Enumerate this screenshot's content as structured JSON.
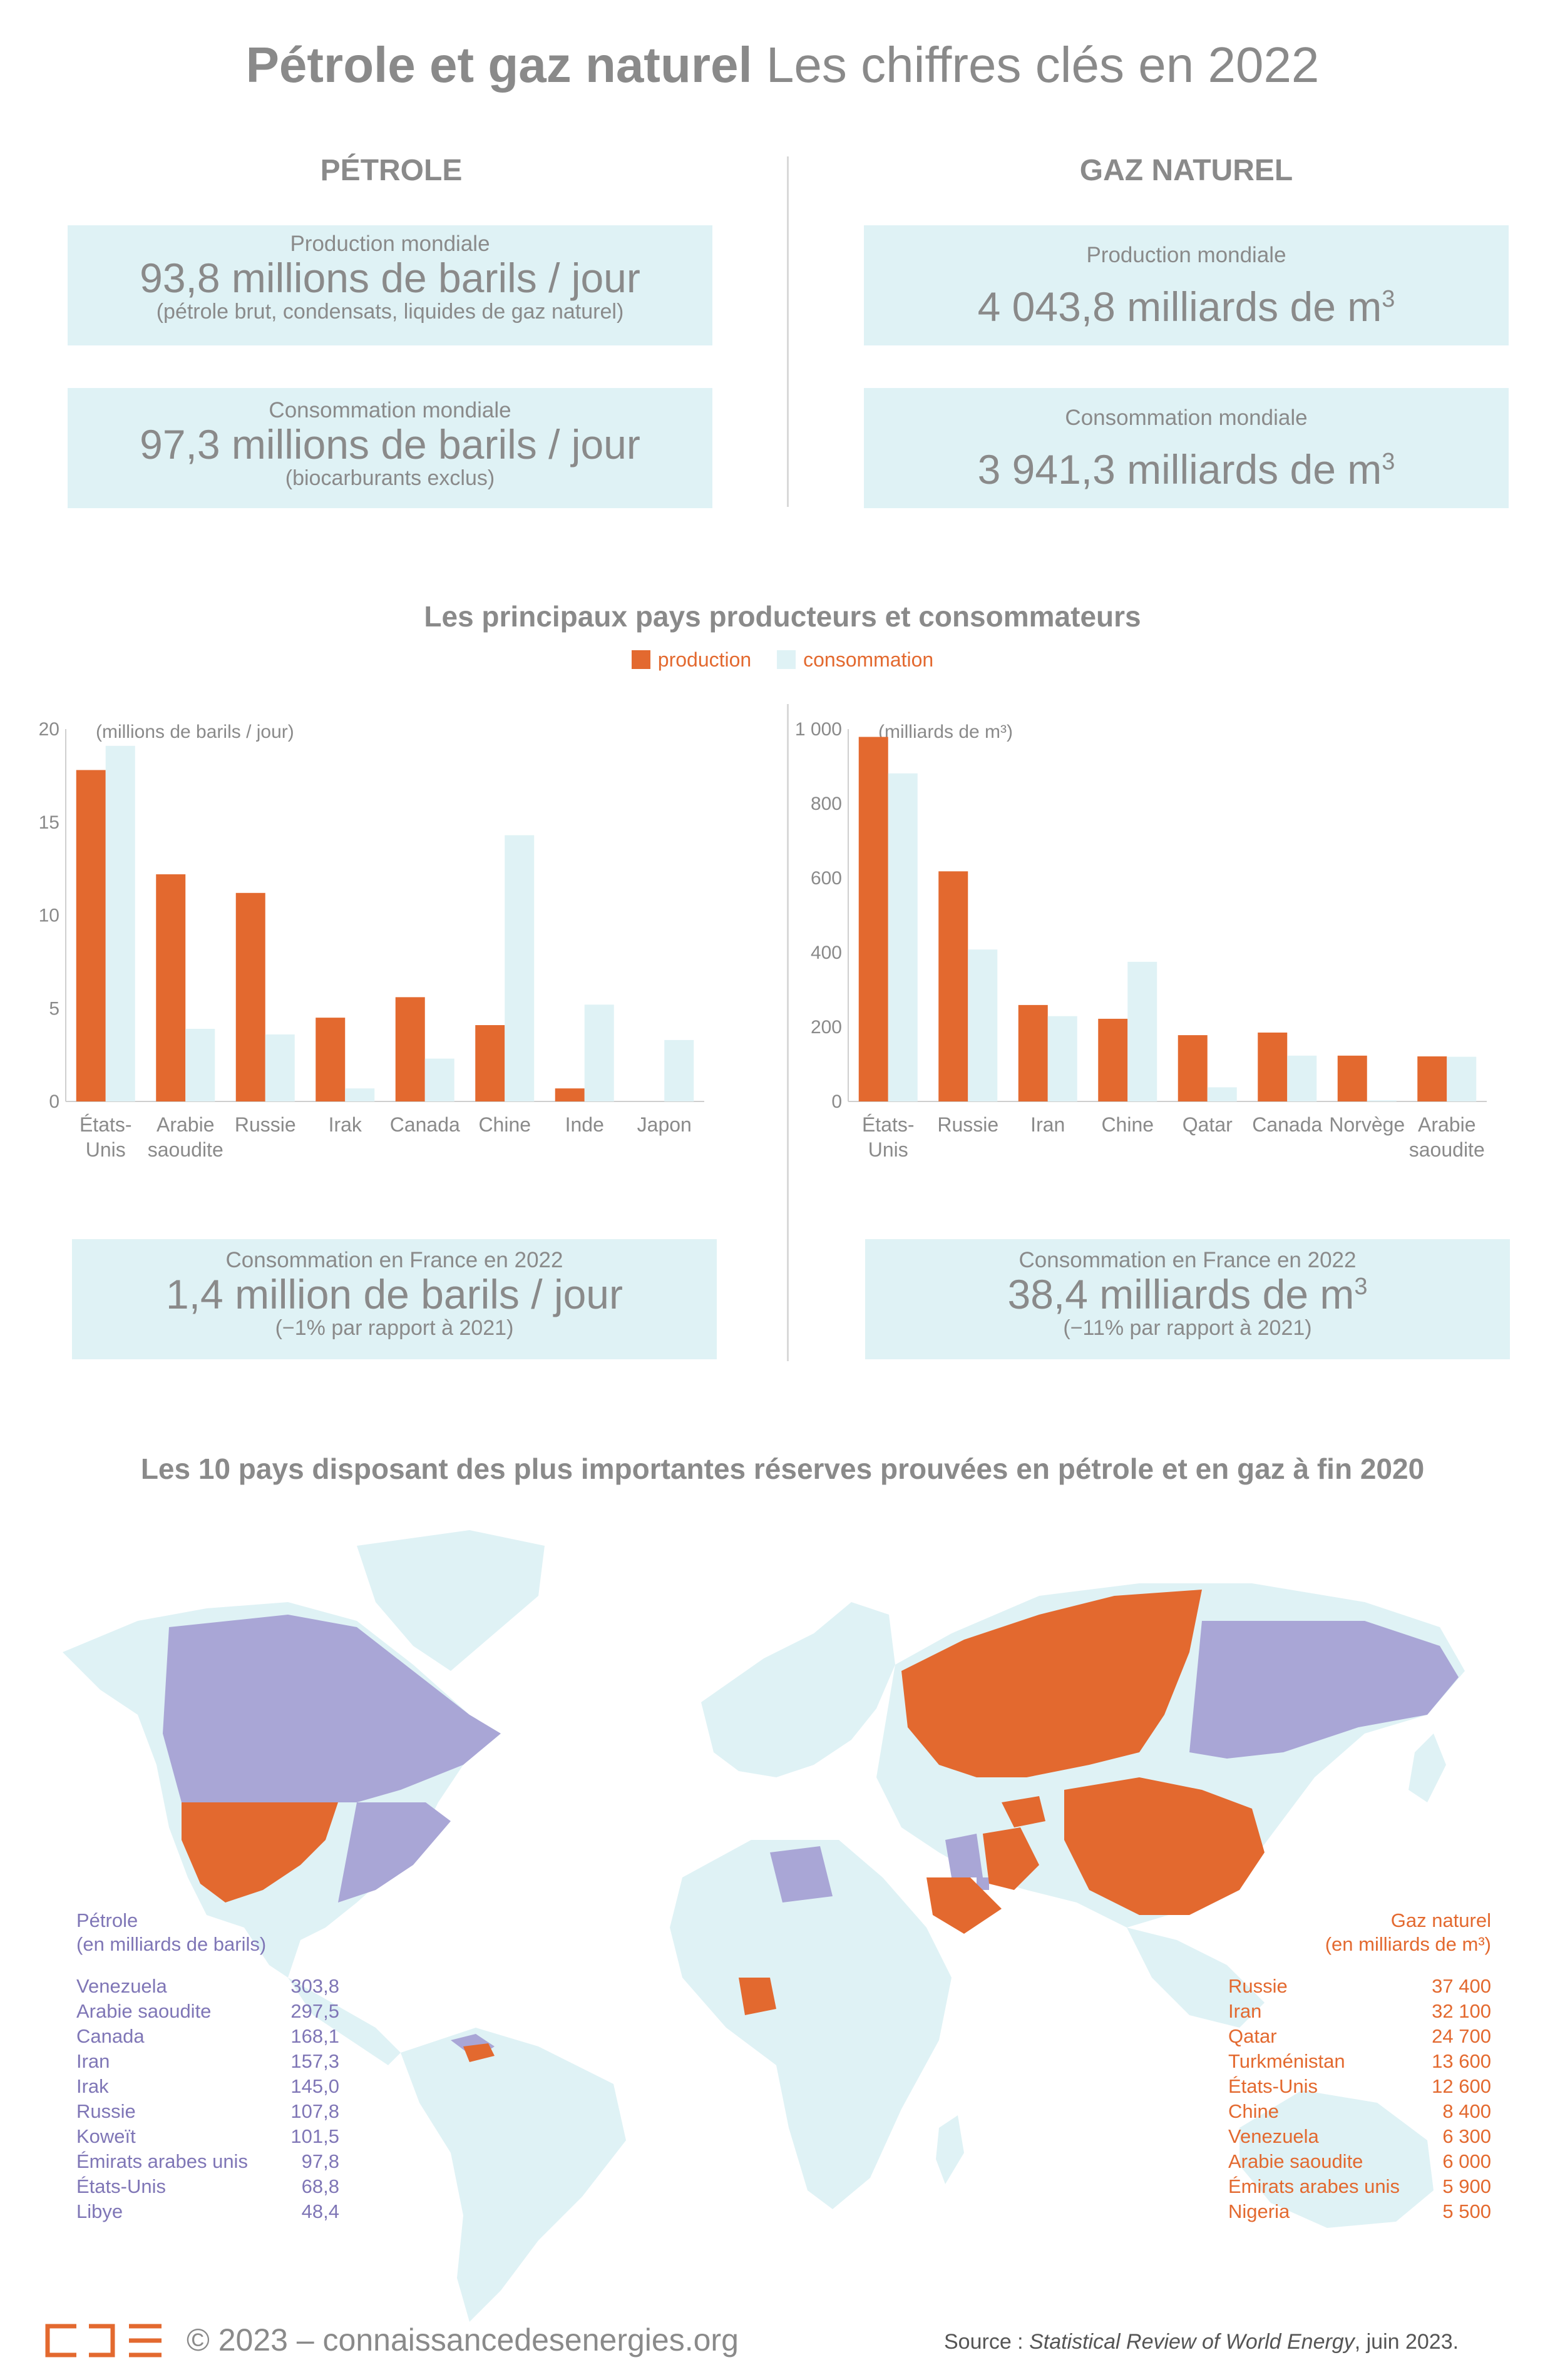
{
  "title": {
    "bold": "Pétrole et gaz naturel",
    "light": "Les chiffres clés en 2022"
  },
  "oil": {
    "heading": "PÉTROLE",
    "production": {
      "label": "Production mondiale",
      "value": "93,8 millions de barils / jour",
      "note": "(pétrole brut, condensats, liquides de gaz naturel)"
    },
    "consumption": {
      "label": "Consommation mondiale",
      "value": "97,3 millions de barils / jour",
      "note": "(biocarburants exclus)"
    },
    "france": {
      "label": "Consommation en France en 2022",
      "value": "1,4 million de barils / jour",
      "note": "(−1% par rapport à 2021)"
    }
  },
  "gas": {
    "heading": "GAZ NATUREL",
    "production": {
      "label": "Production mondiale",
      "value": "4 043,8 milliards de m",
      "sup": "3"
    },
    "consumption": {
      "label": "Consommation mondiale",
      "value": "3 941,3 milliards de m",
      "sup": "3"
    },
    "france": {
      "label": "Consommation en France en 2022",
      "value": "38,4 milliards de m",
      "sup": "3",
      "note": "(−11% par rapport à 2021)"
    }
  },
  "charts_title": "Les principaux pays producteurs et consommateurs",
  "legend": {
    "production": "production",
    "consumption": "consommation"
  },
  "colors": {
    "production": "#e3692f",
    "consumption": "#dff2f5",
    "oil_reserves": "#a9a6d6",
    "gas_reserves": "#e3692f",
    "land": "#dff2f5"
  },
  "chart_data": [
    {
      "type": "bar",
      "unit_label": "(millions de barils / jour)",
      "categories": [
        "États-Unis",
        "Arabie saoudite",
        "Russie",
        "Irak",
        "Canada",
        "Chine",
        "Inde",
        "Japon"
      ],
      "category_lines": [
        [
          "États-",
          "Unis"
        ],
        [
          "Arabie",
          "saoudite"
        ],
        [
          "Russie"
        ],
        [
          "Irak"
        ],
        [
          "Canada"
        ],
        [
          "Chine"
        ],
        [
          "Inde"
        ],
        [
          "Japon"
        ]
      ],
      "series": [
        {
          "name": "production",
          "values": [
            17.8,
            12.2,
            11.2,
            4.5,
            5.6,
            4.1,
            0.7,
            0
          ]
        },
        {
          "name": "consommation",
          "values": [
            19.1,
            3.9,
            3.6,
            0.7,
            2.3,
            14.3,
            5.2,
            3.3
          ]
        }
      ],
      "ylim": [
        0,
        20
      ],
      "yticks": [
        0,
        5,
        10,
        15,
        20
      ],
      "ytick_labels": [
        "0",
        "5",
        "10",
        "15",
        "20"
      ]
    },
    {
      "type": "bar",
      "unit_label": "(milliards de m³)",
      "categories": [
        "États-Unis",
        "Russie",
        "Iran",
        "Chine",
        "Qatar",
        "Canada",
        "Norvège",
        "Arabie saoudite"
      ],
      "category_lines": [
        [
          "États-",
          "Unis"
        ],
        [
          "Russie"
        ],
        [
          "Iran"
        ],
        [
          "Chine"
        ],
        [
          "Qatar"
        ],
        [
          "Canada"
        ],
        [
          "Norvège"
        ],
        [
          "Arabie",
          "saoudite"
        ]
      ],
      "series": [
        {
          "name": "production",
          "values": [
            979,
            618,
            259,
            222,
            178,
            185,
            123,
            121
          ]
        },
        {
          "name": "consommation",
          "values": [
            881,
            408,
            229,
            375,
            38,
            123,
            3,
            120
          ]
        }
      ],
      "ylim": [
        0,
        1000
      ],
      "yticks": [
        0,
        200,
        400,
        600,
        800,
        1000
      ],
      "ytick_labels": [
        "0",
        "200",
        "400",
        "600",
        "800",
        "1 000"
      ]
    }
  ],
  "map_title": "Les 10 pays disposant des plus importantes réserves prouvées en pétrole et en gaz à fin 2020",
  "oil_reserves": {
    "head1": "Pétrole",
    "head2": "(en milliards de barils)",
    "rows": [
      {
        "country": "Venezuela",
        "value": "303,8"
      },
      {
        "country": "Arabie saoudite",
        "value": "297,5"
      },
      {
        "country": "Canada",
        "value": "168,1"
      },
      {
        "country": "Iran",
        "value": "157,3"
      },
      {
        "country": "Irak",
        "value": "145,0"
      },
      {
        "country": "Russie",
        "value": "107,8"
      },
      {
        "country": "Koweït",
        "value": "101,5"
      },
      {
        "country": "Émirats arabes unis",
        "value": "97,8"
      },
      {
        "country": "États-Unis",
        "value": "68,8"
      },
      {
        "country": "Libye",
        "value": "48,4"
      }
    ]
  },
  "gas_reserves": {
    "head1": "Gaz naturel",
    "head2": "(en milliards de m³)",
    "rows": [
      {
        "country": "Russie",
        "value": "37 400"
      },
      {
        "country": "Iran",
        "value": "32 100"
      },
      {
        "country": "Qatar",
        "value": "24 700"
      },
      {
        "country": "Turkménistan",
        "value": "13 600"
      },
      {
        "country": "États-Unis",
        "value": "12 600"
      },
      {
        "country": "Chine",
        "value": "8 400"
      },
      {
        "country": "Venezuela",
        "value": "6 300"
      },
      {
        "country": "Arabie saoudite",
        "value": "6 000"
      },
      {
        "country": "Émirats arabes unis",
        "value": "5 900"
      },
      {
        "country": "Nigeria",
        "value": "5 500"
      }
    ]
  },
  "footer": {
    "copyright": "© 2023 – connaissancedesenergies.org",
    "source_prefix": "Source : ",
    "source_italic": "Statistical Review of World Energy",
    "source_suffix": ", juin 2023."
  }
}
